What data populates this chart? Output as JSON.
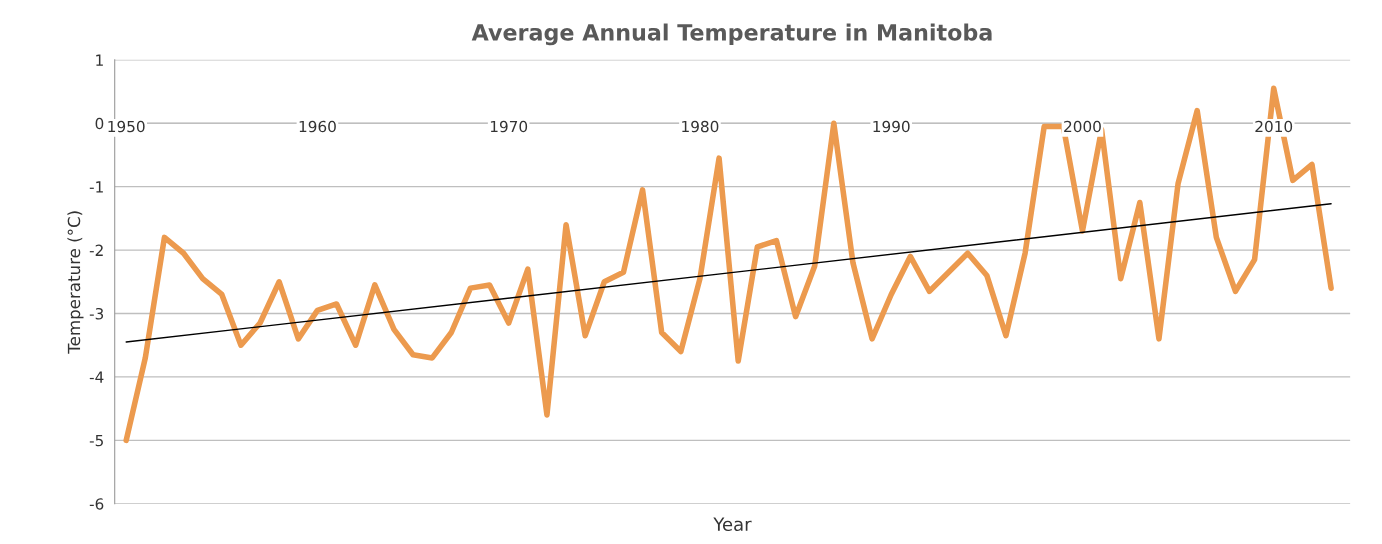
{
  "chart_data": {
    "type": "line",
    "title": "Average Annual Temperature in Manitoba",
    "xlabel": "Year",
    "ylabel": "Temperature (°C)",
    "x": [
      1950,
      1951,
      1952,
      1953,
      1954,
      1955,
      1956,
      1957,
      1958,
      1959,
      1960,
      1961,
      1962,
      1963,
      1964,
      1965,
      1966,
      1967,
      1968,
      1969,
      1970,
      1971,
      1972,
      1973,
      1974,
      1975,
      1976,
      1977,
      1978,
      1979,
      1980,
      1981,
      1982,
      1983,
      1984,
      1985,
      1986,
      1987,
      1988,
      1989,
      1990,
      1991,
      1992,
      1993,
      1994,
      1995,
      1996,
      1997,
      1998,
      1999,
      2000,
      2001,
      2002,
      2003,
      2004,
      2005,
      2006,
      2007,
      2008,
      2009,
      2010,
      2011,
      2012,
      2013
    ],
    "series": [
      {
        "color": "#ec9a4e",
        "values": [
          -5.0,
          -3.7,
          -1.8,
          -2.05,
          -2.45,
          -2.7,
          -3.5,
          -3.15,
          -2.5,
          -3.4,
          -2.95,
          -2.85,
          -3.5,
          -2.55,
          -3.25,
          -3.65,
          -3.7,
          -3.3,
          -2.6,
          -2.55,
          -3.15,
          -2.3,
          -4.6,
          -1.6,
          -3.35,
          -2.5,
          -2.35,
          -1.05,
          -3.3,
          -3.6,
          -2.45,
          -0.55,
          -3.75,
          -1.95,
          -1.85,
          -3.05,
          -2.25,
          0.0,
          -2.2,
          -3.4,
          -2.7,
          -2.1,
          -2.65,
          -2.35,
          -2.05,
          -2.4,
          -3.35,
          -2.05,
          -0.05,
          -0.05,
          -1.7,
          -0.1,
          -2.45,
          -1.25,
          -3.4,
          -0.95,
          0.2,
          -1.8,
          -2.65,
          -2.15,
          0.55,
          -0.9,
          -0.65,
          -2.6
        ]
      },
      {
        "color": "#000000",
        "x": [
          1950,
          2013
        ],
        "values": [
          -3.45,
          -1.27
        ]
      }
    ],
    "xlim": [
      1949.4,
      2014
    ],
    "xticks": [
      1950,
      1960,
      1970,
      1980,
      1990,
      2000,
      2010
    ],
    "ylim": [
      -6,
      1
    ],
    "yticks": [
      -6,
      -5,
      -4,
      -3,
      -2,
      -1,
      0,
      1
    ],
    "grid": "y",
    "marker": "none",
    "line_style": "solid"
  }
}
